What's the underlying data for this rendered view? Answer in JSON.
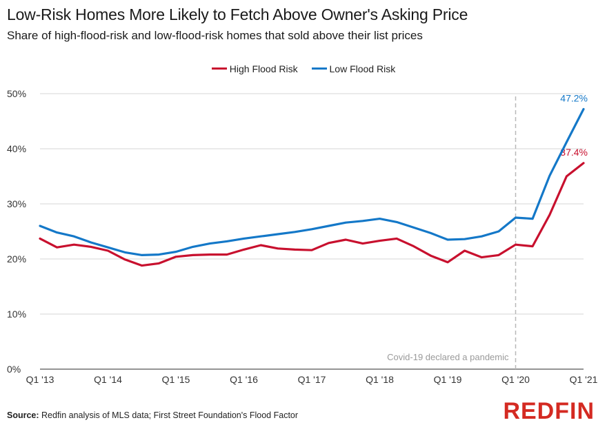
{
  "title": "Low-Risk Homes More Likely to Fetch Above Owner's Asking Price",
  "subtitle": "Share of high-flood-risk and low-flood-risk homes that sold above their list prices",
  "source_label": "Source:",
  "source_text": "Redfin analysis of MLS data; First Street Foundation's Flood Factor",
  "logo": "REDFIN",
  "chart_data": {
    "type": "line",
    "x": [
      "Q1 '13",
      "Q2 '13",
      "Q3 '13",
      "Q4 '13",
      "Q1 '14",
      "Q2 '14",
      "Q3 '14",
      "Q4 '14",
      "Q1 '15",
      "Q2 '15",
      "Q3 '15",
      "Q4 '15",
      "Q1 '16",
      "Q2 '16",
      "Q3 '16",
      "Q4 '16",
      "Q1 '17",
      "Q2 '17",
      "Q3 '17",
      "Q4 '17",
      "Q1 '18",
      "Q2 '18",
      "Q3 '18",
      "Q4 '18",
      "Q1 '19",
      "Q2 '19",
      "Q3 '19",
      "Q4 '19",
      "Q1 '20",
      "Q2 '20",
      "Q3 '20",
      "Q4 '20",
      "Q1 '21"
    ],
    "x_tick_labels": [
      "Q1 '13",
      "Q1 '14",
      "Q1 '15",
      "Q1 '16",
      "Q1 '17",
      "Q1 '18",
      "Q1 '19",
      "Q1 '20",
      "Q1 '21"
    ],
    "x_tick_index": [
      0,
      4,
      8,
      12,
      16,
      20,
      24,
      28,
      32
    ],
    "y_ticks": [
      0,
      10,
      20,
      30,
      40,
      50
    ],
    "y_tick_labels": [
      "0%",
      "10%",
      "20%",
      "30%",
      "40%",
      "50%"
    ],
    "ylim": [
      0,
      50
    ],
    "grid": "horizontal",
    "legend_position": "top-center",
    "series": [
      {
        "name": "High Flood Risk",
        "color": "#c8102e",
        "values": [
          23.7,
          22.1,
          22.6,
          22.2,
          21.5,
          19.9,
          18.8,
          19.2,
          20.4,
          20.7,
          20.8,
          20.8,
          21.7,
          22.5,
          21.9,
          21.7,
          21.6,
          22.9,
          23.5,
          22.8,
          23.3,
          23.7,
          22.3,
          20.6,
          19.4,
          21.5,
          20.3,
          20.7,
          22.6,
          22.3,
          28.0,
          35.0,
          37.4
        ],
        "end_label": "37.4%"
      },
      {
        "name": "Low Flood Risk",
        "color": "#1478c8",
        "values": [
          26.0,
          24.8,
          24.1,
          23.0,
          22.1,
          21.2,
          20.7,
          20.8,
          21.3,
          22.2,
          22.8,
          23.2,
          23.7,
          24.1,
          24.5,
          24.9,
          25.4,
          26.0,
          26.6,
          26.9,
          27.3,
          26.7,
          25.7,
          24.7,
          23.5,
          23.6,
          24.1,
          25.0,
          27.5,
          27.3,
          35.1,
          41.2,
          47.2
        ],
        "end_label": "47.2%"
      }
    ],
    "annotation": {
      "text": "Covid-19 declared a pandemic",
      "x_index": 28
    }
  }
}
